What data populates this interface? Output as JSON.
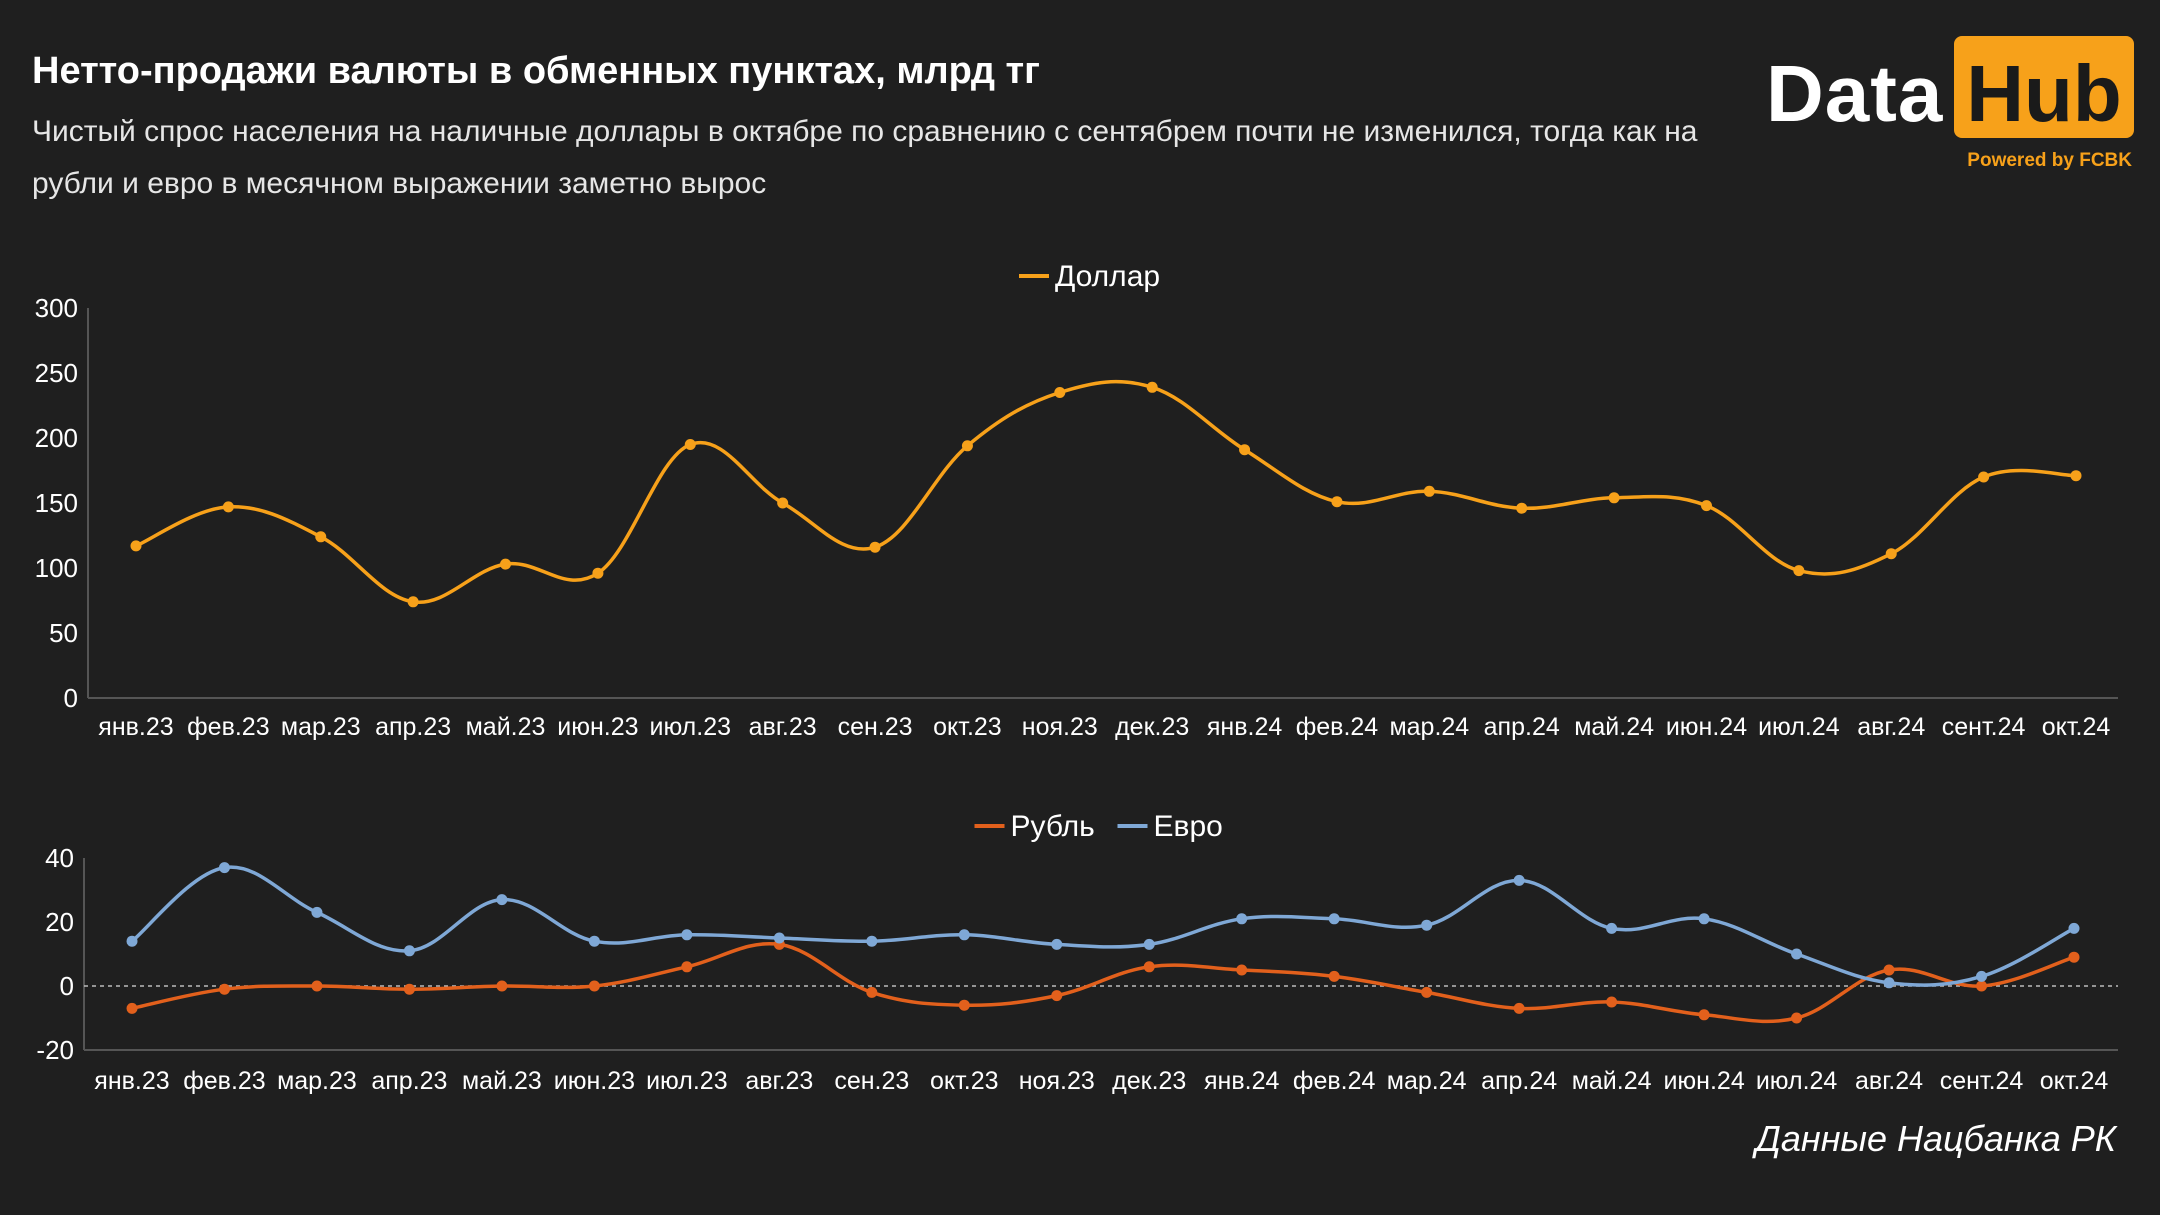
{
  "title": "Нетто-продажи валюты в обменных пунктах, млрд тг",
  "subtitle": "Чистый спрос населения на наличные доллары в октябре по сравнению с сентябрем почти не изменился, тогда как на рубли и евро в месячном выражении заметно вырос",
  "logo": {
    "word1": "Data",
    "word2": "Hub",
    "powered": "Powered by FCBK"
  },
  "source": "Данные Нацбанка РК",
  "colors": {
    "usd": "#f7a11a",
    "rub": "#e2601c",
    "eur": "#7fa8d6",
    "background": "#1f1f1f",
    "grid": "#555555"
  },
  "chart_data": [
    {
      "type": "line",
      "categories": [
        "янв.23",
        "фев.23",
        "мар.23",
        "апр.23",
        "май.23",
        "июн.23",
        "июл.23",
        "авг.23",
        "сен.23",
        "окт.23",
        "ноя.23",
        "дек.23",
        "янв.24",
        "фев.24",
        "мар.24",
        "апр.24",
        "май.24",
        "июн.24",
        "июл.24",
        "авг.24",
        "сент.24",
        "окт.24"
      ],
      "series": [
        {
          "name": "Доллар",
          "color": "#f7a11a",
          "values": [
            117,
            147,
            124,
            74,
            103,
            96,
            195,
            150,
            116,
            194,
            235,
            239,
            191,
            151,
            159,
            146,
            154,
            148,
            98,
            111,
            170,
            171
          ]
        }
      ],
      "ylim": [
        0,
        300
      ],
      "yticks": [
        "0",
        "50",
        "100",
        "150",
        "200",
        "250",
        "300"
      ],
      "legend": "top-center"
    },
    {
      "type": "line",
      "categories": [
        "янв.23",
        "фев.23",
        "мар.23",
        "апр.23",
        "май.23",
        "июн.23",
        "июл.23",
        "авг.23",
        "сен.23",
        "окт.23",
        "ноя.23",
        "дек.23",
        "янв.24",
        "фев.24",
        "мар.24",
        "апр.24",
        "май.24",
        "июн.24",
        "июл.24",
        "авг.24",
        "сент.24",
        "окт.24"
      ],
      "series": [
        {
          "name": "Рубль",
          "color": "#e2601c",
          "values": [
            -7,
            -1,
            0,
            -1,
            0,
            0,
            6,
            13,
            -2,
            -6,
            -3,
            6,
            5,
            3,
            -2,
            -7,
            -5,
            -9,
            -10,
            5,
            0,
            9
          ]
        },
        {
          "name": "Евро",
          "color": "#7fa8d6",
          "values": [
            14,
            37,
            23,
            11,
            27,
            14,
            16,
            15,
            14,
            16,
            13,
            13,
            21,
            21,
            19,
            33,
            18,
            21,
            10,
            1,
            3,
            18
          ]
        }
      ],
      "ylim": [
        -20,
        40
      ],
      "yticks": [
        "-20",
        "0",
        "20",
        "40"
      ],
      "legend": "top-center"
    }
  ]
}
